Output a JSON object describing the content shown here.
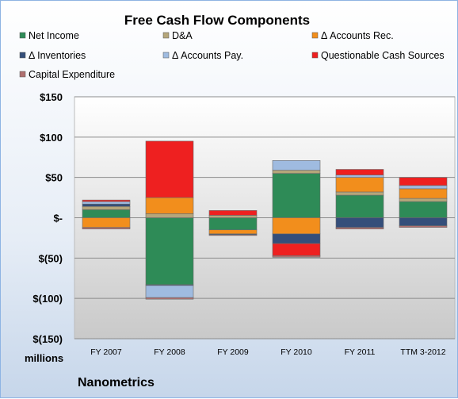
{
  "chart_data": {
    "type": "bar",
    "stacked": true,
    "title": "Free Cash Flow Components",
    "company": "Nanometrics",
    "unit_label": "millions",
    "categories": [
      "FY 2007",
      "FY 2008",
      "FY 2009",
      "FY 2010",
      "FY 2011",
      "TTM 3-2012"
    ],
    "ylim": [
      -150,
      150
    ],
    "yticks": [
      150,
      100,
      50,
      0,
      -50,
      -100,
      -150
    ],
    "ytick_labels": [
      "$150",
      "$100",
      "$50",
      "$-",
      "$(50)",
      "$(100)",
      "$(150)"
    ],
    "grid": "horizontal",
    "legend_position": "top",
    "series": [
      {
        "name": "Net Income",
        "color": "#2e8b57",
        "values": [
          10,
          -83,
          -15,
          55,
          28,
          20
        ]
      },
      {
        "name": "D&A",
        "color": "#b5a67a",
        "values": [
          4,
          5,
          3,
          4,
          4,
          4
        ]
      },
      {
        "name": "Δ Accounts Rec.",
        "color": "#f28e1c",
        "values": [
          -12,
          20,
          -5,
          -20,
          18,
          12
        ]
      },
      {
        "name": "Δ Inventories",
        "color": "#344e7a",
        "values": [
          3,
          -1,
          -1,
          -12,
          -12,
          -10
        ]
      },
      {
        "name": "Δ Accounts Pay.",
        "color": "#9fbbe0",
        "values": [
          3,
          -15,
          0,
          12,
          3,
          4
        ]
      },
      {
        "name": "Questionable Cash Sources",
        "color": "#ee2020",
        "values": [
          2,
          70,
          6,
          -15,
          7,
          10
        ]
      },
      {
        "name": "Capital Expenditure",
        "color": "#b07070",
        "values": [
          -2,
          -2,
          -1,
          -2,
          -2,
          -2
        ]
      }
    ]
  }
}
